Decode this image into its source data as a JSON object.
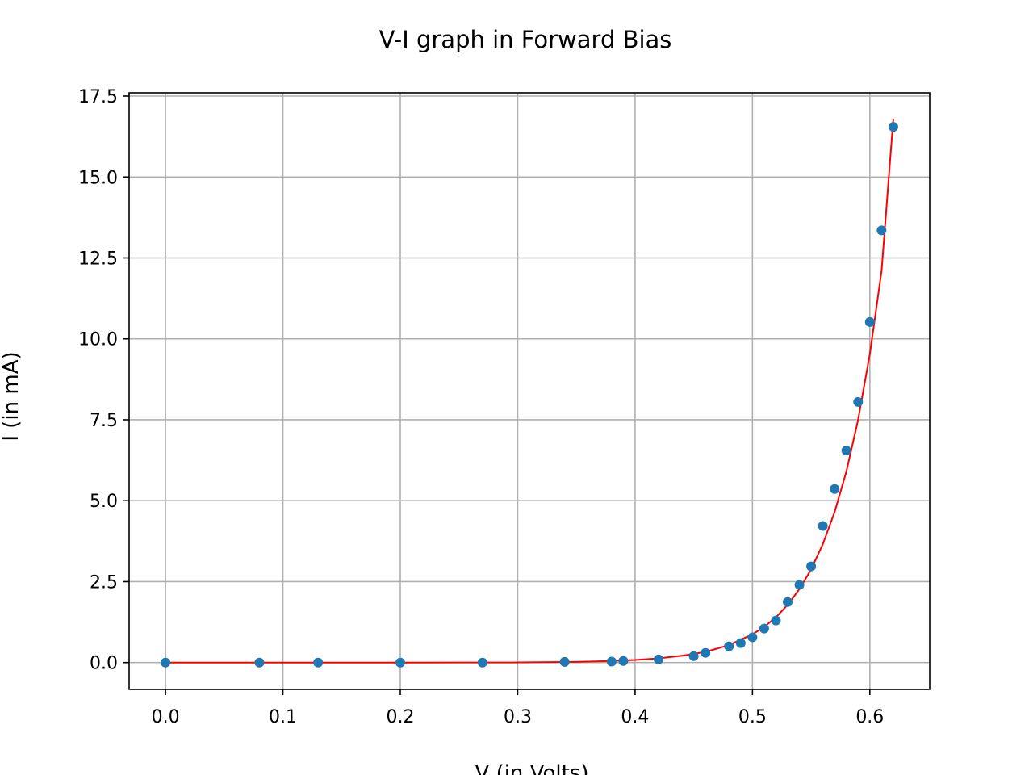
{
  "chart_data": {
    "type": "scatter",
    "title": "V-I graph in Forward Bias",
    "xlabel": "V (in Volts)",
    "ylabel": "I (in mA)",
    "xlim": [
      -0.031,
      0.651
    ],
    "ylim": [
      -0.83,
      17.6
    ],
    "xticks": [
      0.0,
      0.1,
      0.2,
      0.3,
      0.4,
      0.5,
      0.6
    ],
    "xtick_labels": [
      "0.0",
      "0.1",
      "0.2",
      "0.3",
      "0.4",
      "0.5",
      "0.6"
    ],
    "yticks": [
      0.0,
      2.5,
      5.0,
      7.5,
      10.0,
      12.5,
      15.0,
      17.5
    ],
    "ytick_labels": [
      "0.0",
      "2.5",
      "5.0",
      "7.5",
      "10.0",
      "12.5",
      "15.0",
      "17.5"
    ],
    "grid": true,
    "series": [
      {
        "kind": "points",
        "color": "#1f77b4",
        "x": [
          0.0,
          0.08,
          0.13,
          0.2,
          0.27,
          0.34,
          0.38,
          0.39,
          0.42,
          0.45,
          0.46,
          0.48,
          0.49,
          0.5,
          0.51,
          0.52,
          0.53,
          0.54,
          0.55,
          0.56,
          0.57,
          0.58,
          0.59,
          0.6,
          0.61,
          0.62
        ],
        "y": [
          0.0,
          0.0,
          0.0,
          0.0,
          0.0,
          0.02,
          0.03,
          0.05,
          0.1,
          0.2,
          0.3,
          0.5,
          0.6,
          0.78,
          1.05,
          1.3,
          1.87,
          2.4,
          2.97,
          4.22,
          5.36,
          6.55,
          8.05,
          10.52,
          13.35,
          16.55
        ]
      },
      {
        "kind": "fit-curve",
        "color": "#ff0000",
        "x": [
          0.0,
          0.05,
          0.1,
          0.15,
          0.2,
          0.25,
          0.3,
          0.35,
          0.38,
          0.4,
          0.42,
          0.44,
          0.46,
          0.48,
          0.5,
          0.51,
          0.52,
          0.53,
          0.54,
          0.55,
          0.56,
          0.57,
          0.58,
          0.59,
          0.6,
          0.61,
          0.62
        ],
        "y": [
          0.0,
          0.0,
          0.0,
          0.0,
          0.0,
          0.001,
          0.004,
          0.02,
          0.05,
          0.08,
          0.13,
          0.21,
          0.33,
          0.54,
          0.87,
          1.1,
          1.4,
          1.78,
          2.27,
          2.88,
          3.66,
          4.65,
          5.9,
          7.5,
          9.53,
          12.1,
          16.8
        ]
      }
    ]
  }
}
